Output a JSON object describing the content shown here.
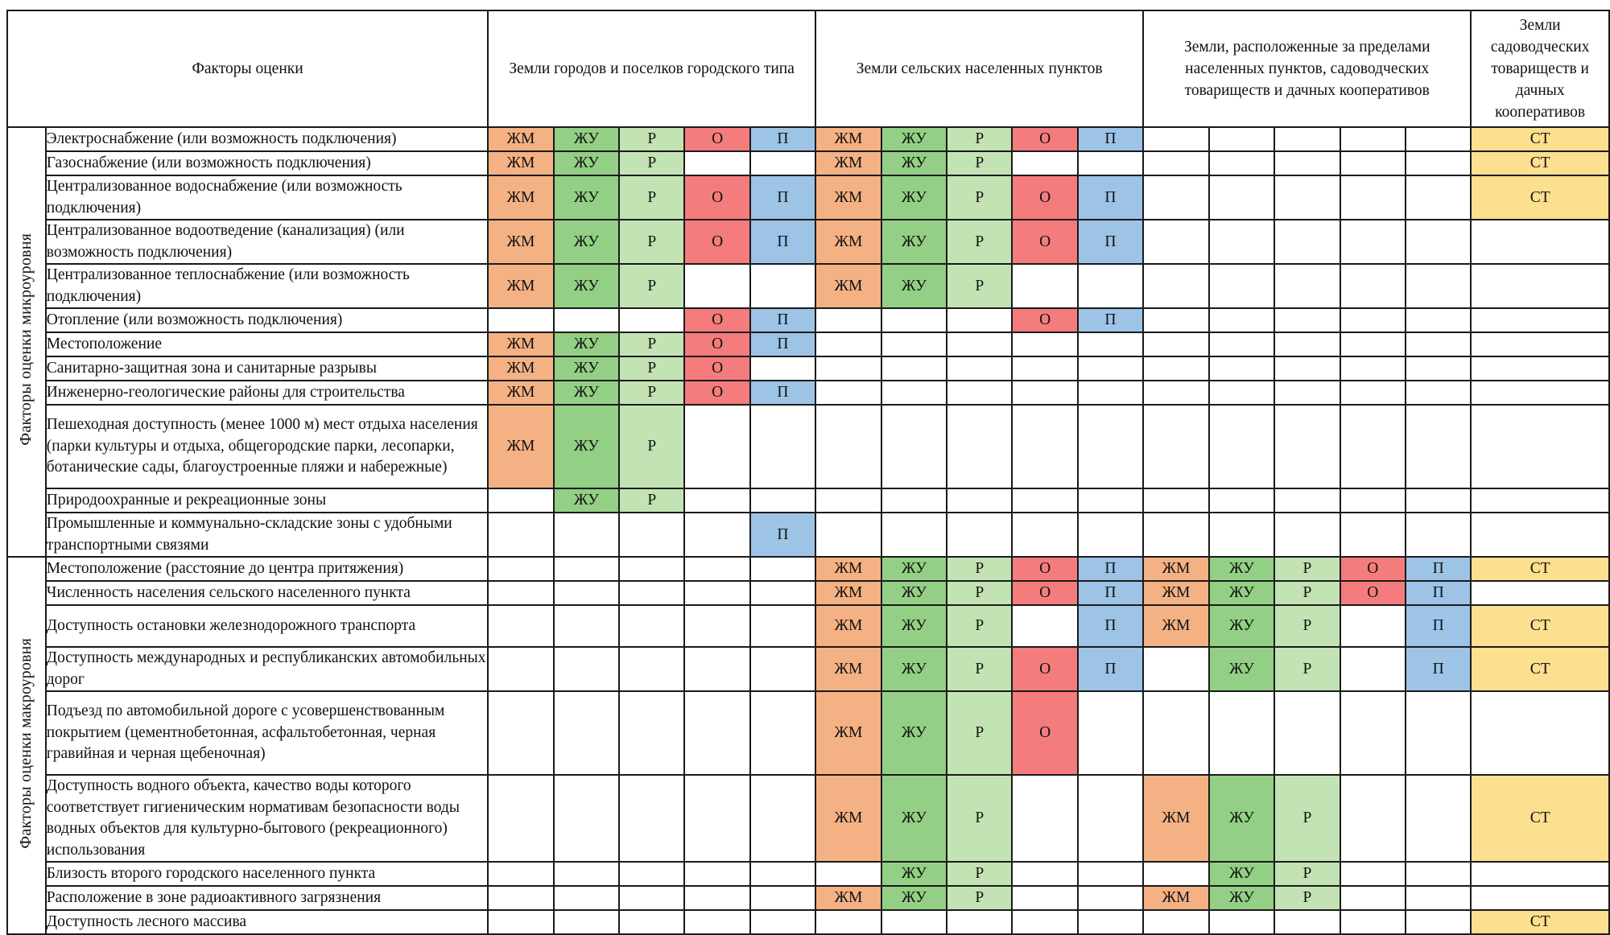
{
  "header": {
    "factors": "Факторы оценки",
    "category_groups": [
      "Земли городов и поселков городского типа",
      "Земли сельских населенных пунктов",
      "Земли, расположенные за пределами населенных пунктов, садоводческих товариществ и дачных кооперативов",
      "Земли садоводческих товариществ и дачных кооперативов"
    ]
  },
  "legend_colors": {
    "ЖМ": "#f4b183",
    "ЖУ": "#93cf84",
    "Р": "#c4e3b4",
    "О": "#f47c7c",
    "П": "#9dc3e6",
    "СТ": "#fcdf8f"
  },
  "sections": [
    {
      "label": "Факторы оценки микроуровня",
      "rows": [
        {
          "factor": "Электроснабжение (или возможность подключения)",
          "cells": [
            "ЖМ",
            "ЖУ",
            "Р",
            "О",
            "П",
            "ЖМ",
            "ЖУ",
            "Р",
            "О",
            "П",
            "",
            "",
            "",
            "",
            "",
            "СТ"
          ]
        },
        {
          "factor": "Газоснабжение (или возможность подключения)",
          "cells": [
            "ЖМ",
            "ЖУ",
            "Р",
            "",
            "",
            "ЖМ",
            "ЖУ",
            "Р",
            "",
            "",
            "",
            "",
            "",
            "",
            "",
            "СТ"
          ]
        },
        {
          "factor": "Централизованное водоснабжение (или возможность подключения)",
          "cells": [
            "ЖМ",
            "ЖУ",
            "Р",
            "О",
            "П",
            "ЖМ",
            "ЖУ",
            "Р",
            "О",
            "П",
            "",
            "",
            "",
            "",
            "",
            "СТ"
          ]
        },
        {
          "factor": "Централизованное водоотведение (канализация) (или возможность подключения)",
          "cells": [
            "ЖМ",
            "ЖУ",
            "Р",
            "О",
            "П",
            "ЖМ",
            "ЖУ",
            "Р",
            "О",
            "П",
            "",
            "",
            "",
            "",
            "",
            ""
          ]
        },
        {
          "factor": "Централизованное теплоснабжение (или возможность подключения)",
          "cells": [
            "ЖМ",
            "ЖУ",
            "Р",
            "",
            "",
            "ЖМ",
            "ЖУ",
            "Р",
            "",
            "",
            "",
            "",
            "",
            "",
            "",
            ""
          ]
        },
        {
          "factor": "Отопление (или возможность подключения)",
          "cells": [
            "",
            "",
            "",
            "О",
            "П",
            "",
            "",
            "",
            "О",
            "П",
            "",
            "",
            "",
            "",
            "",
            ""
          ]
        },
        {
          "factor": "Местоположение",
          "cells": [
            "ЖМ",
            "ЖУ",
            "Р",
            "О",
            "П",
            "",
            "",
            "",
            "",
            "",
            "",
            "",
            "",
            "",
            "",
            ""
          ]
        },
        {
          "factor": "Санитарно-защитная зона и санитарные разрывы",
          "cells": [
            "ЖМ",
            "ЖУ",
            "Р",
            "О",
            "",
            "",
            "",
            "",
            "",
            "",
            "",
            "",
            "",
            "",
            "",
            ""
          ]
        },
        {
          "factor": "Инженерно-геологические районы для строительства",
          "cells": [
            "ЖМ",
            "ЖУ",
            "Р",
            "О",
            "П",
            "",
            "",
            "",
            "",
            "",
            "",
            "",
            "",
            "",
            "",
            ""
          ]
        },
        {
          "factor": "Пешеходная доступность (менее 1000 м) мест отдыха населения (парки культуры и отдыха, общегородские парки, лесопарки, ботанические сады, благоустроенные пляжи и набережные)",
          "cells": [
            "ЖМ",
            "ЖУ",
            "Р",
            "",
            "",
            "",
            "",
            "",
            "",
            "",
            "",
            "",
            "",
            "",
            "",
            ""
          ]
        },
        {
          "factor": "Природоохранные и рекреационные зоны",
          "cells": [
            "",
            "ЖУ",
            "Р",
            "",
            "",
            "",
            "",
            "",
            "",
            "",
            "",
            "",
            "",
            "",
            "",
            ""
          ]
        },
        {
          "factor": "Промышленные и коммунально-складские зоны с удобными транспортными связями",
          "cells": [
            "",
            "",
            "",
            "",
            "П",
            "",
            "",
            "",
            "",
            "",
            "",
            "",
            "",
            "",
            "",
            ""
          ]
        }
      ]
    },
    {
      "label": "Факторы оценки макроуровня",
      "rows": [
        {
          "factor": "Местоположение (расстояние до центра притяжения)",
          "cells": [
            "",
            "",
            "",
            "",
            "",
            "ЖМ",
            "ЖУ",
            "Р",
            "О",
            "П",
            "ЖМ",
            "ЖУ",
            "Р",
            "О",
            "П",
            "СТ"
          ]
        },
        {
          "factor": "Численность населения сельского населенного пункта",
          "cells": [
            "",
            "",
            "",
            "",
            "",
            "ЖМ",
            "ЖУ",
            "Р",
            "О",
            "П",
            "ЖМ",
            "ЖУ",
            "Р",
            "О",
            "П",
            ""
          ]
        },
        {
          "factor": "Доступность остановки железнодорожного транспорта",
          "cells": [
            "",
            "",
            "",
            "",
            "",
            "ЖМ",
            "ЖУ",
            "Р",
            "",
            "П",
            "ЖМ",
            "ЖУ",
            "Р",
            "",
            "П",
            "СТ"
          ]
        },
        {
          "factor": "Доступность международных и республиканских автомобильных дорог",
          "cells": [
            "",
            "",
            "",
            "",
            "",
            "ЖМ",
            "ЖУ",
            "Р",
            "О",
            "П",
            "",
            "ЖУ",
            "Р",
            "",
            "П",
            "СТ"
          ]
        },
        {
          "factor": "Подъезд по автомобильной дороге с усовершенствованным покрытием (цементнобетонная, асфальтобетонная, черная гравийная и черная щебеночная)",
          "cells": [
            "",
            "",
            "",
            "",
            "",
            "ЖМ",
            "ЖУ",
            "Р",
            "О",
            "",
            "",
            "",
            "",
            "",
            "",
            ""
          ]
        },
        {
          "factor": "Доступность водного объекта, качество воды которого соответствует гигиеническим нормативам безопасности воды водных объектов для культурно-бытового (рекреационного) использования",
          "cells": [
            "",
            "",
            "",
            "",
            "",
            "ЖМ",
            "ЖУ",
            "Р",
            "",
            "",
            "ЖМ",
            "ЖУ",
            "Р",
            "",
            "",
            "СТ"
          ]
        },
        {
          "factor": "Близость второго городского населенного пункта",
          "cells": [
            "",
            "",
            "",
            "",
            "",
            "",
            "ЖУ",
            "Р",
            "",
            "",
            "",
            "ЖУ",
            "Р",
            "",
            "",
            ""
          ]
        },
        {
          "factor": "Расположение в зоне радиоактивного загрязнения",
          "cells": [
            "",
            "",
            "",
            "",
            "",
            "ЖМ",
            "ЖУ",
            "Р",
            "",
            "",
            "ЖМ",
            "ЖУ",
            "Р",
            "",
            "",
            ""
          ]
        },
        {
          "factor": "Доступность лесного массива",
          "cells": [
            "",
            "",
            "",
            "",
            "",
            "",
            "",
            "",
            "",
            "",
            "",
            "",
            "",
            "",
            "",
            "СТ"
          ]
        }
      ]
    }
  ]
}
